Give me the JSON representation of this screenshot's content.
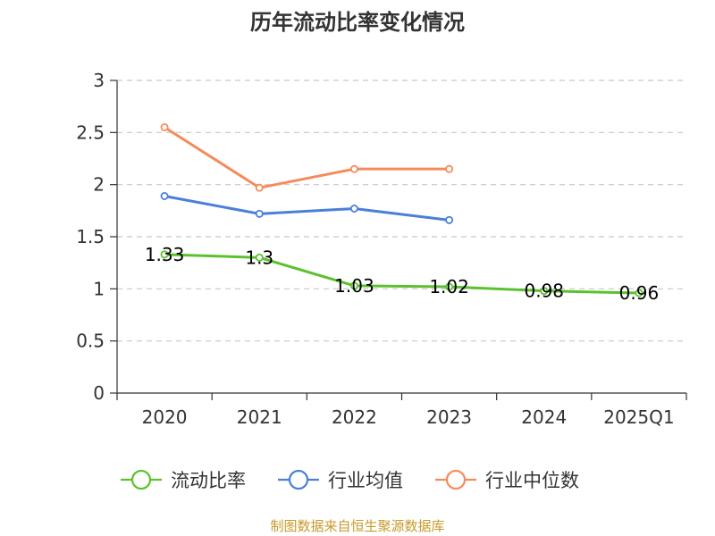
{
  "chart_data": {
    "type": "line",
    "title": "历年流动比率变化情况",
    "categories": [
      "2020",
      "2021",
      "2022",
      "2023",
      "2024",
      "2025Q1"
    ],
    "y_ticks": [
      "0",
      "0.5",
      "1",
      "1.5",
      "2",
      "2.5",
      "3"
    ],
    "ylim": [
      0,
      3
    ],
    "grid": true,
    "legend_position": "bottom",
    "series": [
      {
        "name": "流动比率",
        "color": "#5cc12e",
        "values": [
          1.33,
          1.3,
          1.03,
          1.02,
          0.98,
          0.96
        ],
        "labels": [
          "1.33",
          "1.3",
          "1.03",
          "1.02",
          "0.98",
          "0.96"
        ]
      },
      {
        "name": "行业均值",
        "color": "#4a7fdb",
        "values": [
          1.89,
          1.72,
          1.77,
          1.66,
          null,
          null
        ]
      },
      {
        "name": "行业中位数",
        "color": "#f58b5b",
        "values": [
          2.55,
          1.97,
          2.15,
          2.15,
          null,
          null
        ]
      }
    ]
  },
  "footer": {
    "source": "制图数据来自恒生聚源数据库"
  }
}
